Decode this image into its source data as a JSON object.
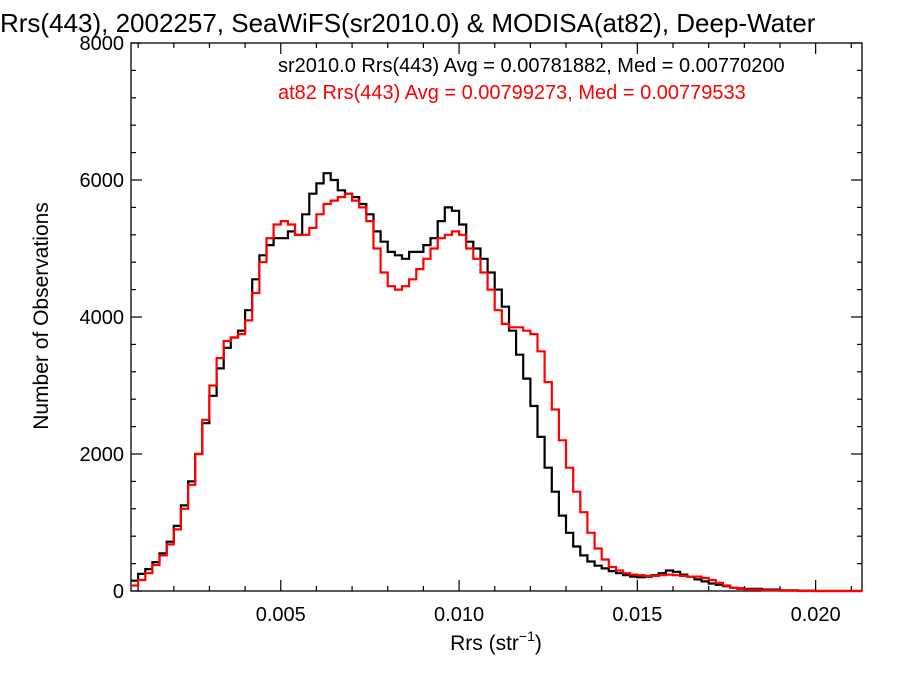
{
  "chart_data": {
    "type": "line",
    "title": "Rrs(443), 2002257, SeaWiFS(sr2010.0) & MODISA(at82), Deep-Water",
    "xlabel": "Rrs (str",
    "xlabel_sup": "−1",
    "xlabel_end": ")",
    "ylabel": "Number of Observations",
    "xlim": [
      0.0008,
      0.0213
    ],
    "ylim": [
      0,
      8000
    ],
    "x_ticks": [
      0.005,
      0.01,
      0.015,
      0.02
    ],
    "x_tick_labels": [
      "0.005",
      "0.010",
      "0.015",
      "0.020"
    ],
    "y_ticks": [
      0,
      2000,
      4000,
      6000,
      8000
    ],
    "y_tick_labels": [
      "0",
      "2000",
      "4000",
      "6000",
      "8000"
    ],
    "step": "histogram",
    "grid": false,
    "colors": {
      "sr2010": "#000000",
      "at82": "#ff0000"
    },
    "annotations": [
      {
        "text": "sr2010.0 Rrs(443) Avg = 0.00781882, Med = 0.00770200",
        "color": "#000000"
      },
      {
        "text": "at82 Rrs(443) Avg = 0.00799273, Med = 0.00779533",
        "color": "#ff0000"
      }
    ],
    "series": [
      {
        "color": "#000000",
        "x": [
          0.0008,
          0.001,
          0.0012,
          0.0014,
          0.0016,
          0.0018,
          0.002,
          0.0022,
          0.0024,
          0.0026,
          0.0028,
          0.003,
          0.0032,
          0.0034,
          0.0036,
          0.0038,
          0.004,
          0.0042,
          0.0044,
          0.0046,
          0.0048,
          0.005,
          0.0052,
          0.0054,
          0.0056,
          0.0058,
          0.006,
          0.0062,
          0.0064,
          0.0066,
          0.0068,
          0.007,
          0.0072,
          0.0074,
          0.0076,
          0.0078,
          0.008,
          0.0082,
          0.0084,
          0.0086,
          0.0088,
          0.009,
          0.0092,
          0.0094,
          0.0096,
          0.0098,
          0.01,
          0.0102,
          0.0104,
          0.0106,
          0.0108,
          0.011,
          0.0112,
          0.0114,
          0.0116,
          0.0118,
          0.012,
          0.0122,
          0.0124,
          0.0126,
          0.0128,
          0.013,
          0.0132,
          0.0134,
          0.0136,
          0.0138,
          0.014,
          0.0142,
          0.0144,
          0.0146,
          0.0148,
          0.015,
          0.0152,
          0.0154,
          0.0156,
          0.0158,
          0.016,
          0.0162,
          0.0164,
          0.0166,
          0.0168,
          0.017,
          0.0172,
          0.0174,
          0.0176,
          0.0178,
          0.018,
          0.0185,
          0.019,
          0.0195,
          0.02,
          0.0205,
          0.021,
          0.0213
        ],
        "y": [
          150,
          250,
          320,
          420,
          550,
          720,
          950,
          1250,
          1600,
          2000,
          2450,
          2850,
          3250,
          3550,
          3700,
          3800,
          4100,
          4550,
          4900,
          5050,
          5150,
          5150,
          5250,
          5200,
          5500,
          5800,
          5950,
          6100,
          6000,
          5850,
          5800,
          5750,
          5650,
          5500,
          5250,
          5100,
          4950,
          4900,
          4850,
          4950,
          4950,
          5050,
          5150,
          5400,
          5600,
          5550,
          5350,
          5100,
          5000,
          4850,
          4650,
          4400,
          4150,
          3800,
          3450,
          3100,
          2700,
          2250,
          1800,
          1450,
          1100,
          850,
          650,
          520,
          430,
          370,
          330,
          290,
          260,
          230,
          210,
          200,
          210,
          230,
          260,
          300,
          280,
          240,
          210,
          170,
          140,
          110,
          90,
          70,
          50,
          40,
          30,
          20,
          10,
          5,
          0,
          0,
          0,
          0
        ]
      },
      {
        "color": "#ff0000",
        "x": [
          0.0008,
          0.001,
          0.0012,
          0.0014,
          0.0016,
          0.0018,
          0.002,
          0.0022,
          0.0024,
          0.0026,
          0.0028,
          0.003,
          0.0032,
          0.0034,
          0.0036,
          0.0038,
          0.004,
          0.0042,
          0.0044,
          0.0046,
          0.0048,
          0.005,
          0.0052,
          0.0054,
          0.0056,
          0.0058,
          0.006,
          0.0062,
          0.0064,
          0.0066,
          0.0068,
          0.007,
          0.0072,
          0.0074,
          0.0076,
          0.0078,
          0.008,
          0.0082,
          0.0084,
          0.0086,
          0.0088,
          0.009,
          0.0092,
          0.0094,
          0.0096,
          0.0098,
          0.01,
          0.0102,
          0.0104,
          0.0106,
          0.0108,
          0.011,
          0.0112,
          0.0114,
          0.0116,
          0.0118,
          0.012,
          0.0122,
          0.0124,
          0.0126,
          0.0128,
          0.013,
          0.0132,
          0.0134,
          0.0136,
          0.0138,
          0.014,
          0.0142,
          0.0144,
          0.0146,
          0.0148,
          0.015,
          0.0152,
          0.0154,
          0.0156,
          0.0158,
          0.016,
          0.0162,
          0.0164,
          0.0166,
          0.0168,
          0.017,
          0.0172,
          0.0174,
          0.0176,
          0.0178,
          0.018,
          0.0185,
          0.019,
          0.0195,
          0.02,
          0.0205,
          0.021,
          0.0213
        ],
        "y": [
          80,
          160,
          260,
          380,
          520,
          680,
          900,
          1200,
          1550,
          2000,
          2500,
          3000,
          3400,
          3650,
          3700,
          3750,
          3950,
          4350,
          4800,
          5150,
          5350,
          5400,
          5350,
          5200,
          5200,
          5300,
          5500,
          5650,
          5700,
          5750,
          5800,
          5700,
          5600,
          5400,
          5000,
          4650,
          4450,
          4400,
          4450,
          4550,
          4700,
          4850,
          5000,
          5150,
          5200,
          5250,
          5200,
          5000,
          4850,
          4650,
          4400,
          4100,
          3900,
          3850,
          3850,
          3800,
          3750,
          3500,
          3050,
          2650,
          2200,
          1800,
          1450,
          1150,
          850,
          620,
          460,
          350,
          300,
          260,
          240,
          230,
          220,
          220,
          230,
          240,
          230,
          220,
          210,
          210,
          190,
          160,
          120,
          80,
          50,
          30,
          20,
          10,
          5,
          0,
          0,
          0,
          0,
          0
        ]
      }
    ]
  }
}
